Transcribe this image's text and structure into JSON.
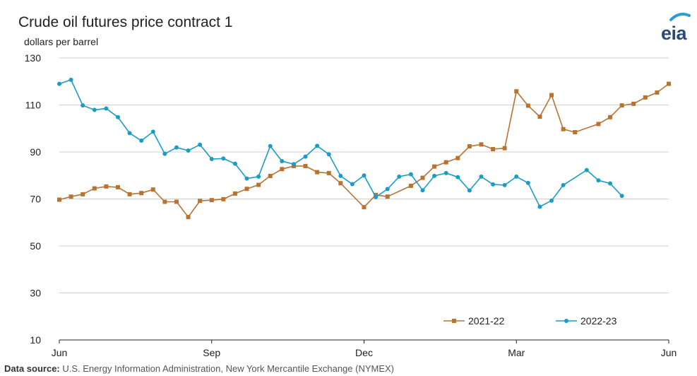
{
  "chart_data": {
    "type": "line",
    "title": "Crude oil futures  price contract 1",
    "ylabel": "dollars per barrel",
    "xlabel": "",
    "ylim": [
      10,
      130
    ],
    "yticks": [
      "130",
      "110",
      "90",
      "70",
      "50",
      "30",
      "10"
    ],
    "x_tick_labels": [
      "Jun",
      "Sep",
      "Dec",
      "Mar",
      "Jun"
    ],
    "grid": "horizontal",
    "legend_position": "bottom-right",
    "series": [
      {
        "name": "2021-22",
        "color": "#b87333",
        "marker": "square",
        "x": [
          0,
          1,
          2,
          3,
          4,
          5,
          6,
          7,
          8,
          9,
          10,
          11,
          12,
          13,
          14,
          15,
          16,
          17,
          18,
          19,
          20,
          21,
          22,
          23,
          24,
          25,
          26,
          27,
          28,
          29,
          30,
          31,
          32,
          33,
          34,
          35,
          36,
          37,
          38,
          39,
          40,
          41,
          42,
          43,
          44,
          45,
          46,
          47,
          48,
          49,
          50,
          51,
          52
        ],
        "values": [
          69.7,
          71,
          72,
          74.5,
          75.3,
          75,
          72,
          72.5,
          74,
          68.8,
          68.8,
          62.3,
          69.2,
          69.5,
          69.9,
          72.3,
          74.3,
          76,
          79.8,
          82.7,
          84,
          84,
          81.4,
          81,
          76.7,
          null,
          66.5,
          71.7,
          71,
          null,
          75.6,
          79,
          83.8,
          85.6,
          87.4,
          92.4,
          93.2,
          91.2,
          91.6,
          115.8,
          109.7,
          105,
          114.2,
          99.7,
          98.4,
          null,
          101.9,
          104.8,
          109.8,
          110.5,
          113.2,
          115.3,
          119
        ]
      },
      {
        "name": "2022-23",
        "color": "#1a9cc9",
        "marker": "circle",
        "x": [
          0,
          1,
          2,
          3,
          4,
          5,
          6,
          7,
          8,
          9,
          10,
          11,
          12,
          13,
          14,
          15,
          16,
          17,
          18,
          19,
          20,
          21,
          22,
          23,
          24,
          25,
          26,
          27,
          28,
          29,
          30,
          31,
          32,
          33,
          34,
          35,
          36,
          37,
          38,
          39,
          40,
          41,
          42,
          43,
          44,
          45,
          46,
          47,
          48
        ],
        "values": [
          119,
          120.7,
          109.8,
          107.9,
          108.5,
          104.8,
          98,
          94.8,
          98.6,
          89.2,
          91.9,
          90.6,
          93.1,
          87,
          87.2,
          85,
          78.7,
          79.5,
          92.5,
          86.1,
          84.8,
          88,
          92.6,
          89,
          79.8,
          76.3,
          80,
          70.8,
          74.2,
          79.5,
          80.5,
          73.7,
          79.8,
          81,
          79.3,
          73.6,
          79.5,
          76.2,
          75.9,
          79.5,
          76.8,
          66.7,
          69.3,
          75.9,
          null,
          82.3,
          77.9,
          76.6,
          71.3
        ]
      }
    ]
  },
  "logo": {
    "text": "eia"
  },
  "source": {
    "label": "Data source:",
    "text": " U.S. Energy Information Administration, New York Mercantile Exchange (NYMEX)"
  }
}
